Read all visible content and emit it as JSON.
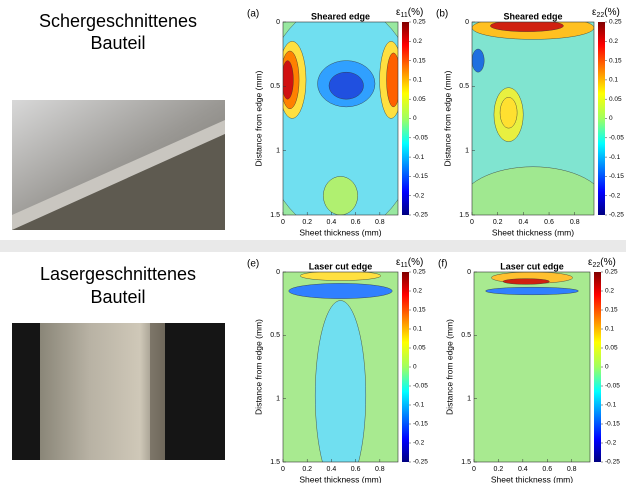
{
  "rows": [
    {
      "label": [
        "Schergeschnittenes",
        "Bauteil"
      ],
      "panels": [
        {
          "letter": "(a)",
          "title": "Sheared edge",
          "cbar": {
            "symbol": "ε",
            "sub": "11",
            "unit": "(%)"
          },
          "cticks": [
            0.25,
            0.2,
            0.15,
            0.1,
            0.05,
            0,
            -0.05,
            -0.1,
            -0.15,
            -0.2,
            -0.25
          ],
          "xticks": [
            0,
            0.2,
            0.4,
            0.6,
            0.8
          ],
          "yticks": [
            0,
            0.5,
            1,
            1.5
          ],
          "xlabel": "Sheet thickness (mm)",
          "ylabel": "Distance from edge (mm)"
        },
        {
          "letter": "(b)",
          "title": "Sheared edge",
          "cbar": {
            "symbol": "ε",
            "sub": "22",
            "unit": "(%)"
          },
          "cticks": [
            0.25,
            0.2,
            0.15,
            0.1,
            0.05,
            0,
            -0.05,
            -0.1,
            -0.15,
            -0.2,
            -0.25
          ],
          "xticks": [
            0,
            0.2,
            0.4,
            0.6,
            0.8
          ],
          "yticks": [
            0,
            0.5,
            1,
            1.5
          ],
          "xlabel": "Sheet thickness (mm)",
          "ylabel": "Distance from edge (mm)"
        }
      ]
    },
    {
      "label": [
        "Lasergeschnittenes",
        "Bauteil"
      ],
      "panels": [
        {
          "letter": "(e)",
          "title": "Laser cut edge",
          "cbar": {
            "symbol": "ε",
            "sub": "11",
            "unit": "(%)"
          },
          "cticks": [
            0.25,
            0.2,
            0.15,
            0.1,
            0.05,
            0,
            -0.05,
            -0.1,
            -0.15,
            -0.2,
            -0.25
          ],
          "xticks": [
            0,
            0.2,
            0.4,
            0.6,
            0.8
          ],
          "yticks": [
            0,
            0.5,
            1,
            1.5
          ],
          "xlabel": "Sheet thickness (mm)",
          "ylabel": "Distance from edge (mm)"
        },
        {
          "letter": "(f)",
          "title": "Laser cut edge",
          "cbar": {
            "symbol": "ε",
            "sub": "22",
            "unit": "(%)"
          },
          "cticks": [
            0.25,
            0.2,
            0.15,
            0.1,
            0.05,
            0,
            -0.05,
            -0.1,
            -0.15,
            -0.2,
            -0.25
          ],
          "xticks": [
            0,
            0.2,
            0.4,
            0.6,
            0.8
          ],
          "yticks": [
            0,
            0.5,
            1,
            1.5
          ],
          "xlabel": "Sheet thickness (mm)",
          "ylabel": "Distance from edge (mm)"
        }
      ]
    }
  ]
}
